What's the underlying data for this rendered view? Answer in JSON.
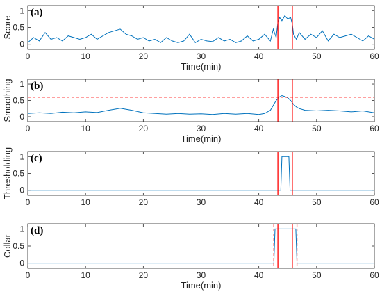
{
  "chart_data": [
    {
      "type": "line",
      "panel_label": "(a)",
      "xlabel": "Time(min)",
      "ylabel": "Score",
      "xlim": [
        0,
        60
      ],
      "ylim": [
        -0.15,
        1.15
      ],
      "xticks": [
        0,
        10,
        20,
        30,
        40,
        50,
        60
      ],
      "yticks": [
        0,
        0.5,
        1
      ],
      "ytick_labels": [
        "0",
        "0.5",
        "1"
      ],
      "grid": false,
      "series": [
        {
          "color": "#0072BD",
          "x": [
            0,
            1,
            2,
            3,
            4,
            5,
            6,
            7,
            8,
            9,
            10,
            11,
            12,
            13,
            14,
            15,
            16,
            17,
            18,
            19,
            20,
            21,
            22,
            23,
            24,
            25,
            26,
            27,
            28,
            29,
            30,
            31,
            32,
            33,
            34,
            35,
            36,
            37,
            38,
            39,
            40,
            41,
            42,
            42.5,
            43,
            43.3,
            43.6,
            44,
            44.5,
            45,
            45.5,
            45.8,
            46,
            46.5,
            47,
            48,
            49,
            50,
            51,
            52,
            53,
            54,
            55,
            56,
            57,
            58,
            59,
            60
          ],
          "y": [
            0.05,
            0.2,
            0.1,
            0.35,
            0.15,
            0.2,
            0.1,
            0.25,
            0.2,
            0.15,
            0.2,
            0.3,
            0.15,
            0.25,
            0.35,
            0.4,
            0.45,
            0.3,
            0.25,
            0.15,
            0.2,
            0.1,
            0.15,
            0.05,
            0.2,
            0.1,
            0.05,
            0.1,
            0.3,
            0.05,
            0.15,
            0.1,
            0.08,
            0.2,
            0.1,
            0.15,
            0.05,
            0.1,
            0.25,
            0.1,
            0.15,
            0.3,
            0.1,
            0.45,
            0.2,
            0.65,
            0.8,
            0.7,
            0.85,
            0.75,
            0.8,
            0.6,
            0.3,
            0.15,
            0.35,
            0.15,
            0.3,
            0.2,
            0.4,
            0.1,
            0.3,
            0.2,
            0.25,
            0.3,
            0.2,
            0.1,
            0.25,
            0.15
          ]
        }
      ],
      "vlines": [
        43.3,
        45.8
      ],
      "vline_color": "#FF0000"
    },
    {
      "type": "line",
      "panel_label": "(b)",
      "xlabel": "Time(min)",
      "ylabel": "Smoothing",
      "xlim": [
        0,
        60
      ],
      "ylim": [
        -0.15,
        1.15
      ],
      "xticks": [
        0,
        10,
        20,
        30,
        40,
        50,
        60
      ],
      "yticks": [
        0,
        0.5,
        1
      ],
      "ytick_labels": [
        "0",
        "0.5",
        "1"
      ],
      "grid": false,
      "series": [
        {
          "color": "#0072BD",
          "x": [
            0,
            2,
            4,
            6,
            8,
            10,
            12,
            14,
            16,
            18,
            20,
            22,
            24,
            26,
            28,
            30,
            32,
            34,
            36,
            38,
            40,
            41,
            42,
            42.5,
            43,
            43.5,
            44,
            44.5,
            45,
            45.5,
            46,
            46.5,
            47,
            48,
            50,
            52,
            54,
            56,
            58,
            60
          ],
          "y": [
            0.1,
            0.12,
            0.1,
            0.14,
            0.12,
            0.15,
            0.13,
            0.2,
            0.26,
            0.2,
            0.12,
            0.1,
            0.08,
            0.1,
            0.08,
            0.09,
            0.07,
            0.1,
            0.08,
            0.1,
            0.07,
            0.1,
            0.2,
            0.35,
            0.5,
            0.6,
            0.65,
            0.62,
            0.58,
            0.5,
            0.38,
            0.3,
            0.25,
            0.2,
            0.18,
            0.2,
            0.18,
            0.15,
            0.18,
            0.12
          ]
        }
      ],
      "threshold": 0.6,
      "threshold_style": "dashed",
      "threshold_color": "#FF0000",
      "vlines": [
        43.3,
        45.8
      ],
      "vline_color": "#FF0000"
    },
    {
      "type": "line",
      "panel_label": "(c)",
      "xlabel": "",
      "ylabel": "Thresholding",
      "xlim": [
        0,
        60
      ],
      "ylim": [
        -0.15,
        1.15
      ],
      "xticks": [
        0,
        10,
        20,
        30,
        40,
        50,
        60
      ],
      "yticks": [
        0,
        0.5,
        1
      ],
      "ytick_labels": [
        "0",
        "0.5",
        "1"
      ],
      "grid": false,
      "series": [
        {
          "color": "#0072BD",
          "x": [
            0,
            43.8,
            44.0,
            45.2,
            45.4,
            60
          ],
          "y": [
            0,
            0,
            1,
            1,
            0,
            0
          ]
        }
      ],
      "vlines": [
        43.3,
        45.8
      ],
      "vline_color": "#FF0000"
    },
    {
      "type": "line",
      "panel_label": "(d)",
      "xlabel": "Time(min)",
      "ylabel": "Collar",
      "xlim": [
        0,
        60
      ],
      "ylim": [
        -0.15,
        1.15
      ],
      "xticks": [
        0,
        10,
        20,
        30,
        40,
        50,
        60
      ],
      "yticks": [
        0,
        0.5,
        1
      ],
      "ytick_labels": [
        "0",
        "0.5",
        "1"
      ],
      "grid": false,
      "series": [
        {
          "color": "#0072BD",
          "x": [
            0,
            42.6,
            42.8,
            46.4,
            46.6,
            60
          ],
          "y": [
            0,
            0,
            1,
            1,
            0,
            0
          ]
        }
      ],
      "vlines": [
        43.3,
        45.8
      ],
      "vline_color": "#FF0000",
      "collar_lines": [
        42.6,
        46.6
      ],
      "collar_style": "dashed",
      "collar_color": "#FF0000"
    }
  ]
}
